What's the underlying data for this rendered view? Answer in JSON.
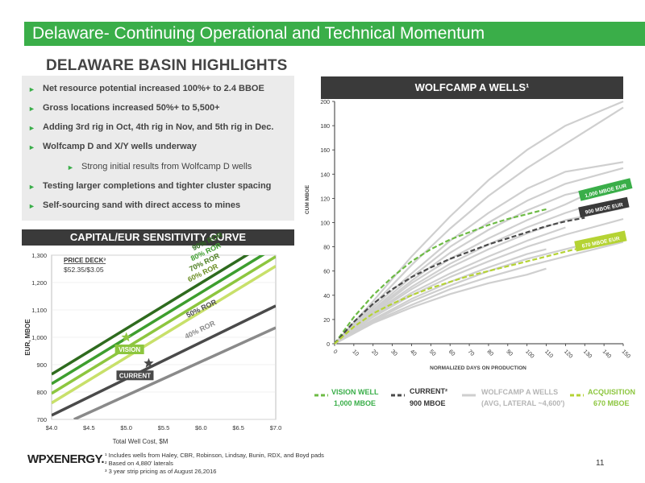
{
  "header": {
    "title": "Delaware- Continuing Operational and Technical Momentum"
  },
  "section_title": "DELAWARE BASIN HIGHLIGHTS",
  "highlights": {
    "items": [
      {
        "text": "Net resource potential increased 100%+ to 2.4 BBOE",
        "level": 1
      },
      {
        "text": "Gross locations increased 50%+ to 5,500+",
        "level": 1
      },
      {
        "text": "Adding 3rd rig in Oct, 4th rig in Nov, and 5th rig in Dec.",
        "level": 1
      },
      {
        "text": "Wolfcamp D and X/Y wells underway",
        "level": 1
      },
      {
        "text": "Strong initial results from Wolfcamp D wells",
        "level": 2
      },
      {
        "text": "Testing larger completions and tighter cluster spacing",
        "level": 1
      },
      {
        "text": "Self-sourcing sand with direct access to mines",
        "level": 1
      }
    ]
  },
  "capital_chart": {
    "box_title": "CAPITAL/EUR SENSITIVITY CURVE",
    "price_deck_label": "PRICE DECK³",
    "price_deck_value": "$52.35/$3.05",
    "vision_label": "VISION",
    "current_label": "CURRENT"
  },
  "wolfcamp_chart": {
    "box_title": "WOLFCAMP A WELLS¹",
    "eur_1000": "1,000 MBOE EUR",
    "eur_900": "900 MBOE EUR",
    "eur_670": "670 MBOE EUR"
  },
  "legend": {
    "vision_title": "VISION WELL",
    "vision_sub": "1,000 MBOE",
    "current_title": "CURRENT²",
    "current_sub": "900 MBOE",
    "wolfcamp_title": "WOLFCAMP A WELLS",
    "wolfcamp_sub": "(AVG, LATERAL ~4,600')",
    "acq_title": "ACQUISITION",
    "acq_sub": "670 MBOE"
  },
  "footnotes": [
    "¹ Includes wells from Haley, CBR, Robinson, Lindsay, Bunin, RDX, and Boyd pads",
    "² Based on 4,880' laterals",
    "³ 3 year strip pricing as of August 26,2016"
  ],
  "logo": "WPXENERGY.",
  "page_number": "11",
  "colors": {
    "brand_green": "#3aae49",
    "dark": "#3a3a3a",
    "grey_wells": "#cfcfcf",
    "acq_green": "#b5d334"
  },
  "chart_data": [
    {
      "type": "line",
      "title": "CAPITAL/EUR SENSITIVITY CURVE",
      "xlabel": "Total Well Cost, $M",
      "ylabel": "EUR, MBOE",
      "xlim": [
        4.0,
        7.0
      ],
      "ylim": [
        700,
        1300
      ],
      "x_ticks": [
        "$4.0",
        "$4.5",
        "$5.0",
        "$5.5",
        "$6.0",
        "$6.5",
        "$7.0"
      ],
      "y_ticks": [
        "700",
        "800",
        "900",
        "1,000",
        "1,100",
        "1,200",
        "1,300"
      ],
      "series": [
        {
          "name": "90% ROR",
          "color": "#2e6b1e",
          "x": [
            4.0,
            7.0
          ],
          "values": [
            865,
            1365
          ]
        },
        {
          "name": "80% ROR",
          "color": "#3e9e2e",
          "x": [
            4.0,
            7.0
          ],
          "values": [
            830,
            1330
          ]
        },
        {
          "name": "70% ROR",
          "color": "#8dc63f",
          "x": [
            4.0,
            7.0
          ],
          "values": [
            795,
            1295
          ]
        },
        {
          "name": "60% ROR",
          "color": "#c8e06a",
          "x": [
            4.0,
            7.0
          ],
          "values": [
            760,
            1260
          ]
        },
        {
          "name": "50% ROR",
          "color": "#4a4a4a",
          "x": [
            4.0,
            7.0
          ],
          "values": [
            715,
            1115
          ]
        },
        {
          "name": "40% ROR",
          "color": "#8a8a8a",
          "x": [
            4.3,
            7.0
          ],
          "values": [
            700,
            1035
          ]
        }
      ],
      "points": [
        {
          "name": "VISION",
          "x": 5.0,
          "y": 1000,
          "marker": "star",
          "color": "#8dc63f"
        },
        {
          "name": "CURRENT",
          "x": 5.3,
          "y": 905,
          "marker": "star",
          "color": "#4a4a4a"
        }
      ]
    },
    {
      "type": "line",
      "title": "WOLFCAMP A WELLS¹",
      "xlabel": "NORMALIZED DAYS ON PRODUCTION",
      "ylabel": "CUM MBOE",
      "xlim": [
        0,
        150
      ],
      "ylim": [
        0,
        200
      ],
      "x_ticks": [
        "0",
        "10",
        "20",
        "30",
        "40",
        "50",
        "60",
        "70",
        "80",
        "90",
        "100",
        "110",
        "120",
        "130",
        "140",
        "150"
      ],
      "y_ticks": [
        "0",
        "20",
        "40",
        "60",
        "80",
        "100",
        "120",
        "140",
        "160",
        "180",
        "200"
      ],
      "series": [
        {
          "name": "VISION WELL",
          "style": "dashed",
          "color": "#6dbb45",
          "x": [
            0,
            10,
            20,
            30,
            40,
            50,
            60,
            70,
            80,
            90,
            100,
            110
          ],
          "values": [
            0,
            22,
            40,
            55,
            68,
            78,
            86,
            92,
            98,
            103,
            107,
            111
          ]
        },
        {
          "name": "CURRENT²",
          "style": "dashed",
          "color": "#4a4a4a",
          "x": [
            0,
            10,
            20,
            30,
            40,
            50,
            60,
            70,
            80,
            90,
            100,
            110,
            120,
            130
          ],
          "values": [
            0,
            18,
            33,
            45,
            55,
            63,
            70,
            76,
            82,
            87,
            92,
            97,
            101,
            104
          ]
        },
        {
          "name": "ACQUISITION",
          "style": "dashed",
          "color": "#b5d334",
          "x": [
            0,
            10,
            20,
            30,
            40,
            50,
            60,
            70,
            80,
            90,
            100,
            110,
            120,
            130
          ],
          "values": [
            0,
            14,
            25,
            33,
            40,
            46,
            51,
            56,
            60,
            64,
            68,
            72,
            76,
            80
          ]
        }
      ],
      "wolfcamp_wells": [
        {
          "x": [
            0,
            20,
            40,
            60,
            80,
            100,
            120,
            150
          ],
          "values": [
            0,
            35,
            72,
            105,
            135,
            160,
            180,
            200
          ]
        },
        {
          "x": [
            0,
            20,
            40,
            60,
            80,
            100,
            120,
            150
          ],
          "values": [
            0,
            32,
            65,
            95,
            122,
            145,
            165,
            195
          ]
        },
        {
          "x": [
            0,
            20,
            40,
            60,
            80,
            100,
            120,
            150
          ],
          "values": [
            0,
            30,
            58,
            85,
            108,
            128,
            142,
            150
          ]
        },
        {
          "x": [
            0,
            20,
            40,
            60,
            80,
            100,
            120,
            150
          ],
          "values": [
            0,
            28,
            55,
            80,
            100,
            118,
            132,
            145
          ]
        },
        {
          "x": [
            0,
            20,
            40,
            60,
            80,
            100,
            120,
            150
          ],
          "values": [
            0,
            27,
            52,
            75,
            94,
            110,
            123,
            133
          ]
        },
        {
          "x": [
            0,
            20,
            40,
            60,
            80,
            100,
            120,
            140
          ],
          "values": [
            0,
            26,
            50,
            70,
            87,
            102,
            115,
            130
          ]
        },
        {
          "x": [
            0,
            20,
            40,
            60,
            80,
            100,
            120,
            130
          ],
          "values": [
            0,
            25,
            47,
            66,
            82,
            96,
            108,
            113
          ]
        },
        {
          "x": [
            0,
            20,
            40,
            60,
            80,
            100,
            120,
            150
          ],
          "values": [
            0,
            24,
            45,
            63,
            78,
            91,
            102,
            112
          ]
        },
        {
          "x": [
            0,
            20,
            40,
            60,
            80,
            100,
            120
          ],
          "values": [
            0,
            23,
            42,
            58,
            72,
            85,
            96
          ]
        },
        {
          "x": [
            0,
            20,
            40,
            60,
            80,
            100,
            120,
            150
          ],
          "values": [
            0,
            22,
            40,
            55,
            68,
            80,
            90,
            103
          ]
        },
        {
          "x": [
            0,
            20,
            40,
            60,
            80,
            100,
            110
          ],
          "values": [
            0,
            20,
            37,
            51,
            63,
            74,
            78
          ]
        },
        {
          "x": [
            0,
            20,
            40,
            60,
            80,
            100,
            120,
            150
          ],
          "values": [
            0,
            19,
            35,
            48,
            60,
            70,
            78,
            90
          ]
        },
        {
          "x": [
            0,
            20,
            40,
            60,
            80,
            100,
            120,
            150
          ],
          "values": [
            0,
            18,
            32,
            45,
            55,
            64,
            72,
            84
          ]
        },
        {
          "x": [
            0,
            20,
            40,
            60,
            80,
            100,
            110
          ],
          "values": [
            0,
            17,
            30,
            41,
            50,
            57,
            62
          ]
        }
      ],
      "labels": [
        "1,000 MBOE EUR",
        "900 MBOE EUR",
        "670 MBOE EUR"
      ]
    }
  ]
}
